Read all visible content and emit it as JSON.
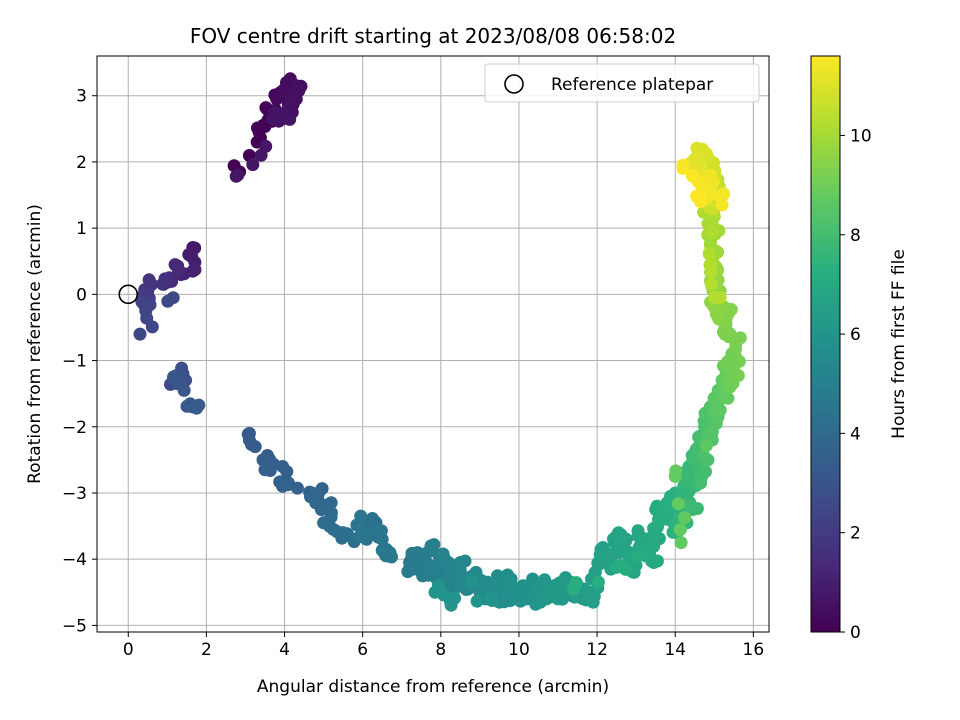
{
  "chart_data": {
    "type": "scatter",
    "title": "FOV centre drift starting at 2023/08/08 06:58:02",
    "xlabel": "Angular distance from reference (arcmin)",
    "ylabel": "Rotation from reference (arcmin)",
    "xlim": [
      -0.8,
      16.4
    ],
    "ylim": [
      -5.1,
      3.6
    ],
    "xticks": [
      0,
      2,
      4,
      6,
      8,
      10,
      12,
      14,
      16
    ],
    "yticks": [
      -5,
      -4,
      -3,
      -2,
      -1,
      0,
      1,
      2,
      3
    ],
    "grid": true,
    "legend": {
      "position": "top-right",
      "entries": [
        "Reference platepar"
      ]
    },
    "reference_point": {
      "x": 0,
      "y": 0
    },
    "colorbar": {
      "label": "Hours from first FF file",
      "range": [
        0,
        11.6
      ],
      "ticks": [
        0,
        2,
        4,
        6,
        8,
        10
      ],
      "colormap": "viridis"
    },
    "segments": [
      {
        "h": [
          0.0,
          0.7
        ],
        "n": 30,
        "pts": [
          [
            2.85,
            1.85
          ],
          [
            3.3,
            2.3
          ],
          [
            3.35,
            2.45
          ],
          [
            3.45,
            2.55
          ],
          [
            3.6,
            2.65
          ],
          [
            3.55,
            2.8
          ],
          [
            3.7,
            2.75
          ],
          [
            3.8,
            2.95
          ],
          [
            3.9,
            3.05
          ],
          [
            4.0,
            3.1
          ],
          [
            4.05,
            3.2
          ],
          [
            4.1,
            2.9
          ],
          [
            4.2,
            2.75
          ],
          [
            4.3,
            3.15
          ],
          [
            4.3,
            2.95
          ],
          [
            4.25,
            3.0
          ],
          [
            4.1,
            2.85
          ],
          [
            3.95,
            2.65
          ],
          [
            3.7,
            2.65
          ],
          [
            3.4,
            2.1
          ],
          [
            2.8,
            1.8
          ]
        ]
      },
      {
        "h": [
          0.8,
          2.6
        ],
        "n": 22,
        "pts": [
          [
            1.7,
            0.7
          ],
          [
            1.55,
            0.6
          ],
          [
            1.65,
            0.35
          ],
          [
            1.35,
            0.3
          ],
          [
            1.2,
            0.45
          ],
          [
            1.05,
            0.25
          ],
          [
            0.95,
            0.2
          ],
          [
            0.9,
            0.15
          ],
          [
            0.6,
            0.15
          ],
          [
            0.5,
            0.05
          ],
          [
            0.4,
            0.0
          ],
          [
            0.35,
            -0.1
          ],
          [
            0.45,
            -0.2
          ],
          [
            0.45,
            -0.25
          ],
          [
            0.3,
            -0.6
          ],
          [
            1.15,
            -0.05
          ]
        ]
      },
      {
        "h": [
          2.6,
          3.3
        ],
        "n": 16,
        "pts": [
          [
            1.2,
            -1.25
          ],
          [
            1.3,
            -1.3
          ],
          [
            1.4,
            -1.2
          ],
          [
            1.35,
            -1.35
          ],
          [
            1.25,
            -1.35
          ],
          [
            1.65,
            -1.7
          ],
          [
            1.75,
            -1.72
          ]
        ]
      },
      {
        "h": [
          3.3,
          4.7
        ],
        "n": 45,
        "pts": [
          [
            3.1,
            -2.1
          ],
          [
            3.25,
            -2.3
          ],
          [
            3.45,
            -2.5
          ],
          [
            3.5,
            -2.65
          ],
          [
            3.95,
            -2.6
          ],
          [
            3.95,
            -2.9
          ],
          [
            4.1,
            -2.85
          ],
          [
            4.7,
            -3.0
          ],
          [
            4.85,
            -3.05
          ],
          [
            4.8,
            -3.15
          ],
          [
            5.05,
            -3.2
          ],
          [
            5.2,
            -3.3
          ],
          [
            5.0,
            -3.45
          ],
          [
            5.25,
            -3.55
          ],
          [
            5.5,
            -3.6
          ],
          [
            5.8,
            -3.7
          ],
          [
            6.05,
            -3.55
          ],
          [
            6.2,
            -3.45
          ],
          [
            6.3,
            -3.6
          ],
          [
            6.1,
            -3.7
          ],
          [
            5.95,
            -3.35
          ],
          [
            6.5,
            -3.7
          ],
          [
            6.7,
            -3.9
          ],
          [
            6.6,
            -3.95
          ]
        ]
      },
      {
        "h": [
          4.7,
          6.0
        ],
        "n": 95,
        "pts": [
          [
            7.2,
            -4.05
          ],
          [
            7.3,
            -4.15
          ],
          [
            7.4,
            -3.9
          ],
          [
            7.5,
            -4.1
          ],
          [
            7.6,
            -4.0
          ],
          [
            7.7,
            -4.2
          ],
          [
            7.75,
            -3.8
          ],
          [
            7.85,
            -4.1
          ],
          [
            7.9,
            -4.3
          ],
          [
            8.0,
            -4.2
          ],
          [
            8.05,
            -4.45
          ],
          [
            8.1,
            -4.0
          ],
          [
            8.2,
            -4.25
          ],
          [
            8.25,
            -4.5
          ],
          [
            8.3,
            -4.1
          ],
          [
            8.4,
            -4.3
          ],
          [
            8.5,
            -4.05
          ],
          [
            8.55,
            -4.4
          ],
          [
            8.65,
            -4.3
          ],
          [
            8.8,
            -4.4
          ],
          [
            8.9,
            -4.2
          ],
          [
            9.0,
            -4.5
          ],
          [
            9.15,
            -4.6
          ],
          [
            9.2,
            -4.35
          ],
          [
            9.3,
            -4.5
          ],
          [
            9.45,
            -4.25
          ],
          [
            9.5,
            -4.65
          ],
          [
            9.6,
            -4.4
          ],
          [
            9.7,
            -4.55
          ],
          [
            9.8,
            -4.3
          ],
          [
            9.9,
            -4.6
          ],
          [
            10.0,
            -4.5
          ],
          [
            10.1,
            -4.4
          ],
          [
            10.2,
            -4.6
          ],
          [
            10.35,
            -4.3
          ],
          [
            7.85,
            -4.5
          ],
          [
            8.25,
            -4.65
          ],
          [
            9.3,
            -4.6
          ]
        ]
      },
      {
        "h": [
          6.0,
          7.2
        ],
        "n": 85,
        "pts": [
          [
            10.4,
            -4.55
          ],
          [
            10.5,
            -4.45
          ],
          [
            10.55,
            -4.65
          ],
          [
            10.65,
            -4.35
          ],
          [
            10.75,
            -4.5
          ],
          [
            10.9,
            -4.4
          ],
          [
            11.0,
            -4.6
          ],
          [
            11.1,
            -4.45
          ],
          [
            11.2,
            -4.35
          ],
          [
            11.35,
            -4.55
          ],
          [
            11.5,
            -4.4
          ],
          [
            11.65,
            -4.6
          ],
          [
            11.8,
            -4.5
          ],
          [
            11.9,
            -4.65
          ],
          [
            11.95,
            -4.2
          ],
          [
            12.05,
            -4.05
          ],
          [
            12.1,
            -3.85
          ],
          [
            12.25,
            -3.95
          ],
          [
            12.35,
            -4.15
          ],
          [
            12.45,
            -3.75
          ],
          [
            12.55,
            -3.6
          ],
          [
            12.65,
            -3.85
          ],
          [
            12.75,
            -3.7
          ],
          [
            12.85,
            -3.9
          ],
          [
            12.95,
            -4.2
          ],
          [
            13.05,
            -3.65
          ],
          [
            13.15,
            -3.75
          ],
          [
            13.25,
            -3.95
          ],
          [
            13.35,
            -3.7
          ],
          [
            13.45,
            -4.05
          ],
          [
            13.55,
            -3.5
          ],
          [
            13.65,
            -3.3
          ],
          [
            13.5,
            -3.25
          ],
          [
            13.2,
            -3.9
          ],
          [
            12.6,
            -4.1
          ],
          [
            11.4,
            -4.45
          ]
        ]
      },
      {
        "h": [
          7.2,
          8.8
        ],
        "n": 70,
        "pts": [
          [
            13.8,
            -3.4
          ],
          [
            13.9,
            -3.2
          ],
          [
            14.0,
            -3.0
          ],
          [
            14.05,
            -3.6
          ],
          [
            14.15,
            -3.35
          ],
          [
            14.2,
            -3.1
          ],
          [
            14.25,
            -2.9
          ],
          [
            14.3,
            -3.45
          ],
          [
            14.35,
            -2.6
          ],
          [
            14.4,
            -2.75
          ],
          [
            14.45,
            -3.25
          ],
          [
            14.5,
            -2.4
          ],
          [
            14.55,
            -2.55
          ],
          [
            14.6,
            -2.3
          ],
          [
            14.65,
            -2.85
          ],
          [
            14.7,
            -2.15
          ],
          [
            14.75,
            -2.0
          ],
          [
            14.8,
            -2.5
          ],
          [
            14.85,
            -1.85
          ],
          [
            14.9,
            -1.7
          ],
          [
            14.95,
            -2.2
          ],
          [
            15.0,
            -1.6
          ],
          [
            15.05,
            -1.95
          ],
          [
            15.1,
            -1.45
          ],
          [
            15.15,
            -1.75
          ],
          [
            15.2,
            -1.3
          ],
          [
            14.15,
            -3.75
          ],
          [
            14.0,
            -2.75
          ]
        ]
      },
      {
        "h": [
          8.8,
          10.3
        ],
        "n": 65,
        "pts": [
          [
            15.25,
            -1.55
          ],
          [
            15.3,
            -1.2
          ],
          [
            15.35,
            -1.05
          ],
          [
            15.4,
            -1.4
          ],
          [
            15.45,
            -0.9
          ],
          [
            15.5,
            -1.15
          ],
          [
            15.55,
            -0.75
          ],
          [
            15.4,
            -0.6
          ],
          [
            15.3,
            -0.45
          ],
          [
            15.35,
            -0.3
          ],
          [
            15.2,
            -0.2
          ],
          [
            15.1,
            -0.35
          ],
          [
            15.0,
            -0.1
          ],
          [
            15.15,
            0.05
          ],
          [
            15.05,
            0.2
          ],
          [
            15.0,
            0.35
          ],
          [
            14.95,
            0.5
          ],
          [
            15.05,
            0.65
          ],
          [
            14.9,
            0.75
          ],
          [
            15.0,
            0.9
          ],
          [
            14.95,
            1.05
          ],
          [
            14.9,
            1.2
          ],
          [
            14.85,
            1.3
          ],
          [
            14.9,
            0.45
          ],
          [
            15.15,
            -0.05
          ]
        ]
      },
      {
        "h": [
          10.3,
          11.6
        ],
        "n": 60,
        "pts": [
          [
            14.8,
            1.4
          ],
          [
            14.9,
            1.55
          ],
          [
            14.95,
            1.7
          ],
          [
            15.0,
            1.8
          ],
          [
            15.1,
            1.6
          ],
          [
            15.05,
            1.45
          ],
          [
            15.0,
            1.3
          ],
          [
            14.95,
            1.9
          ],
          [
            14.85,
            2.05
          ],
          [
            14.75,
            2.1
          ],
          [
            14.65,
            2.15
          ],
          [
            14.55,
            2.0
          ],
          [
            14.45,
            1.9
          ],
          [
            14.6,
            1.75
          ],
          [
            14.7,
            1.6
          ],
          [
            14.8,
            1.5
          ],
          [
            14.9,
            1.8
          ],
          [
            15.2,
            1.35
          ],
          [
            14.2,
            1.95
          ],
          [
            14.65,
            1.4
          ]
        ]
      }
    ]
  }
}
